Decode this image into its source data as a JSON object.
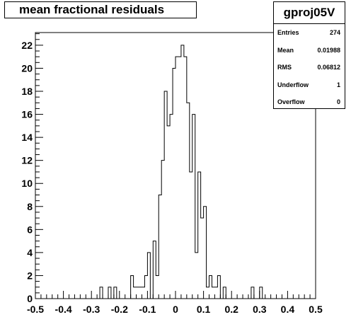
{
  "title": "mean fractional residuals",
  "stats": {
    "name": "gproj05V",
    "rows": [
      {
        "label": "Entries",
        "value": "274"
      },
      {
        "label": "Mean",
        "value": "0.01988"
      },
      {
        "label": "RMS",
        "value": "0.06812"
      },
      {
        "label": "Underflow",
        "value": "1"
      },
      {
        "label": "Overflow",
        "value": "0"
      }
    ]
  },
  "chart_data": {
    "type": "bar",
    "title": "mean fractional residuals",
    "xlabel": "",
    "ylabel": "",
    "xlim": [
      -0.5,
      0.5
    ],
    "ylim": [
      0,
      23.1
    ],
    "bin_width": 0.01,
    "x_ticks": [
      "-0.5",
      "-0.4",
      "-0.3",
      "-0.2",
      "-0.1",
      "0",
      "0.1",
      "0.2",
      "0.3",
      "0.4",
      "0.5"
    ],
    "y_ticks": [
      "0",
      "2",
      "4",
      "6",
      "8",
      "10",
      "12",
      "14",
      "16",
      "18",
      "20",
      "22"
    ],
    "bins": [
      {
        "x": -0.27,
        "y": 1
      },
      {
        "x": -0.24,
        "y": 1
      },
      {
        "x": -0.22,
        "y": 1
      },
      {
        "x": -0.16,
        "y": 2
      },
      {
        "x": -0.15,
        "y": 1
      },
      {
        "x": -0.14,
        "y": 1
      },
      {
        "x": -0.13,
        "y": 1
      },
      {
        "x": -0.12,
        "y": 1
      },
      {
        "x": -0.11,
        "y": 2
      },
      {
        "x": -0.1,
        "y": 4
      },
      {
        "x": -0.09,
        "y": 0
      },
      {
        "x": -0.08,
        "y": 5
      },
      {
        "x": -0.07,
        "y": 2
      },
      {
        "x": -0.06,
        "y": 9
      },
      {
        "x": -0.05,
        "y": 12
      },
      {
        "x": -0.04,
        "y": 18
      },
      {
        "x": -0.03,
        "y": 15
      },
      {
        "x": -0.02,
        "y": 16
      },
      {
        "x": -0.01,
        "y": 20
      },
      {
        "x": 0.0,
        "y": 21
      },
      {
        "x": 0.01,
        "y": 21
      },
      {
        "x": 0.02,
        "y": 22
      },
      {
        "x": 0.03,
        "y": 21
      },
      {
        "x": 0.04,
        "y": 17
      },
      {
        "x": 0.05,
        "y": 11
      },
      {
        "x": 0.06,
        "y": 16
      },
      {
        "x": 0.07,
        "y": 4
      },
      {
        "x": 0.08,
        "y": 11
      },
      {
        "x": 0.09,
        "y": 7
      },
      {
        "x": 0.1,
        "y": 8
      },
      {
        "x": 0.11,
        "y": 1
      },
      {
        "x": 0.12,
        "y": 2
      },
      {
        "x": 0.13,
        "y": 1
      },
      {
        "x": 0.14,
        "y": 1
      },
      {
        "x": 0.15,
        "y": 2
      },
      {
        "x": 0.16,
        "y": 0
      },
      {
        "x": 0.17,
        "y": 1
      },
      {
        "x": 0.27,
        "y": 1
      },
      {
        "x": 0.3,
        "y": 1
      }
    ]
  }
}
